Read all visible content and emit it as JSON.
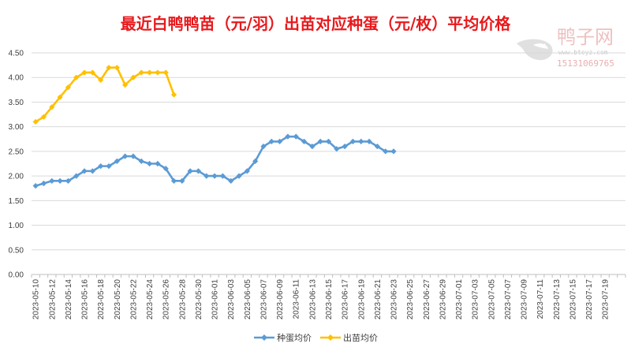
{
  "chart_data": {
    "type": "line",
    "title": "最近白鸭鸭苗（元/羽）出苗对应种蛋（元/枚）平均价格",
    "xlabel": "",
    "ylabel": "",
    "ylim": [
      0,
      4.5
    ],
    "yticks": [
      "0.00",
      "0.50",
      "1.00",
      "1.50",
      "2.00",
      "2.50",
      "3.00",
      "3.50",
      "4.00",
      "4.50"
    ],
    "x_start": "2023-05-10",
    "x_end": "2023-07-21",
    "x_tick_labels": [
      "2023-05-10",
      "2023-05-12",
      "2023-05-14",
      "2023-05-16",
      "2023-05-18",
      "2023-05-20",
      "2023-05-22",
      "2023-05-24",
      "2023-05-26",
      "2023-05-28",
      "2023-05-30",
      "2023-06-01",
      "2023-06-03",
      "2023-06-05",
      "2023-06-07",
      "2023-06-09",
      "2023-06-11",
      "2023-06-13",
      "2023-06-15",
      "2023-06-17",
      "2023-06-19",
      "2023-06-21",
      "2023-06-23",
      "2023-06-25",
      "2023-06-27",
      "2023-06-29",
      "2023-07-01",
      "2023-07-03",
      "2023-07-05",
      "2023-07-07",
      "2023-07-09",
      "2023-07-11",
      "2023-07-13",
      "2023-07-15",
      "2023-07-17",
      "2023-07-19"
    ],
    "grid": "horizontal",
    "legend_position": "bottom",
    "series": [
      {
        "name": "种蛋均价",
        "color": "#5b9bd5",
        "marker": "diamond",
        "dates": [
          "2023-05-10",
          "2023-05-11",
          "2023-05-12",
          "2023-05-13",
          "2023-05-14",
          "2023-05-15",
          "2023-05-16",
          "2023-05-17",
          "2023-05-18",
          "2023-05-19",
          "2023-05-20",
          "2023-05-21",
          "2023-05-22",
          "2023-05-23",
          "2023-05-24",
          "2023-05-25",
          "2023-05-26",
          "2023-05-27",
          "2023-05-28",
          "2023-05-29",
          "2023-05-30",
          "2023-05-31",
          "2023-06-01",
          "2023-06-02",
          "2023-06-03",
          "2023-06-04",
          "2023-06-05",
          "2023-06-06",
          "2023-06-07",
          "2023-06-08",
          "2023-06-09",
          "2023-06-10",
          "2023-06-11",
          "2023-06-12",
          "2023-06-13",
          "2023-06-14",
          "2023-06-15",
          "2023-06-16",
          "2023-06-17",
          "2023-06-18",
          "2023-06-19",
          "2023-06-20",
          "2023-06-21",
          "2023-06-22",
          "2023-06-23"
        ],
        "values": [
          1.8,
          1.85,
          1.9,
          1.9,
          1.9,
          2.0,
          2.1,
          2.1,
          2.2,
          2.2,
          2.3,
          2.4,
          2.4,
          2.3,
          2.25,
          2.25,
          2.15,
          1.9,
          1.9,
          2.1,
          2.1,
          2.0,
          2.0,
          2.0,
          1.9,
          2.0,
          2.1,
          2.3,
          2.6,
          2.7,
          2.7,
          2.8,
          2.8,
          2.7,
          2.6,
          2.7,
          2.7,
          2.55,
          2.6,
          2.7,
          2.7,
          2.7,
          2.6,
          2.5,
          2.5
        ]
      },
      {
        "name": "出苗均价",
        "color": "#ffc000",
        "marker": "diamond",
        "dates": [
          "2023-05-10",
          "2023-05-11",
          "2023-05-12",
          "2023-05-13",
          "2023-05-14",
          "2023-05-15",
          "2023-05-16",
          "2023-05-17",
          "2023-05-18",
          "2023-05-19",
          "2023-05-20",
          "2023-05-21",
          "2023-05-22",
          "2023-05-23",
          "2023-05-24",
          "2023-05-25",
          "2023-05-26",
          "2023-05-27"
        ],
        "values": [
          3.1,
          3.2,
          3.4,
          3.6,
          3.8,
          4.0,
          4.1,
          4.1,
          3.95,
          4.2,
          4.2,
          3.85,
          4.0,
          4.1,
          4.1,
          4.1,
          4.1,
          3.65
        ]
      }
    ]
  },
  "watermark": {
    "brand": "鸭子网",
    "url": "www.bteyz.com",
    "phone": "15131069765"
  }
}
